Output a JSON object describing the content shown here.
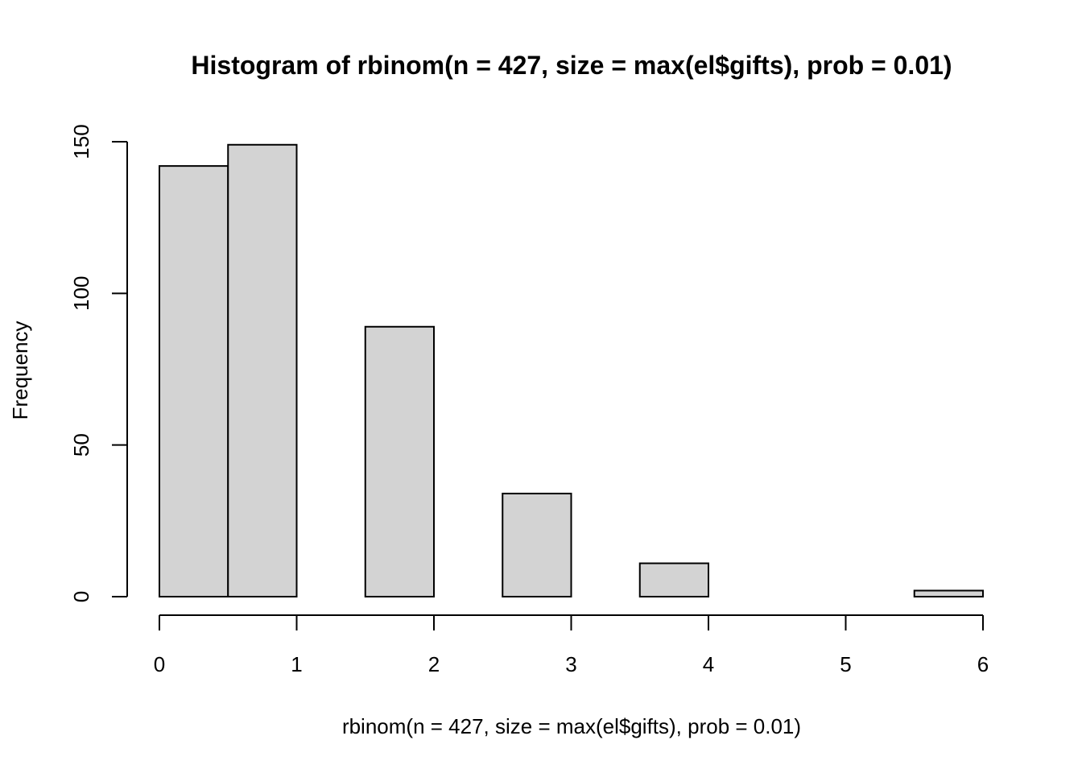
{
  "chart_data": {
    "type": "bar",
    "title": "Histogram of rbinom(n = 427, size = max(el$gifts), prob = 0.01)",
    "xlabel": "rbinom(n = 427, size = max(el$gifts), prob = 0.01)",
    "ylabel": "Frequency",
    "bins": [
      {
        "start": 0.0,
        "end": 0.5,
        "value": 142
      },
      {
        "start": 0.5,
        "end": 1.0,
        "value": 149
      },
      {
        "start": 1.0,
        "end": 1.5,
        "value": 0
      },
      {
        "start": 1.5,
        "end": 2.0,
        "value": 89
      },
      {
        "start": 2.0,
        "end": 2.5,
        "value": 0
      },
      {
        "start": 2.5,
        "end": 3.0,
        "value": 34
      },
      {
        "start": 3.0,
        "end": 3.5,
        "value": 0
      },
      {
        "start": 3.5,
        "end": 4.0,
        "value": 11
      },
      {
        "start": 4.0,
        "end": 4.5,
        "value": 0
      },
      {
        "start": 4.5,
        "end": 5.0,
        "value": 0
      },
      {
        "start": 5.0,
        "end": 5.5,
        "value": 0
      },
      {
        "start": 5.5,
        "end": 6.0,
        "value": 2
      }
    ],
    "xlim": [
      0,
      6
    ],
    "ylim": [
      0,
      150
    ],
    "x_ticks": [
      "0",
      "1",
      "2",
      "3",
      "4",
      "5",
      "6"
    ],
    "y_ticks": [
      "0",
      "50",
      "100",
      "150"
    ],
    "grid": false,
    "legend": "none",
    "bar_fill": "#d3d3d3",
    "bar_stroke": "#000000"
  }
}
